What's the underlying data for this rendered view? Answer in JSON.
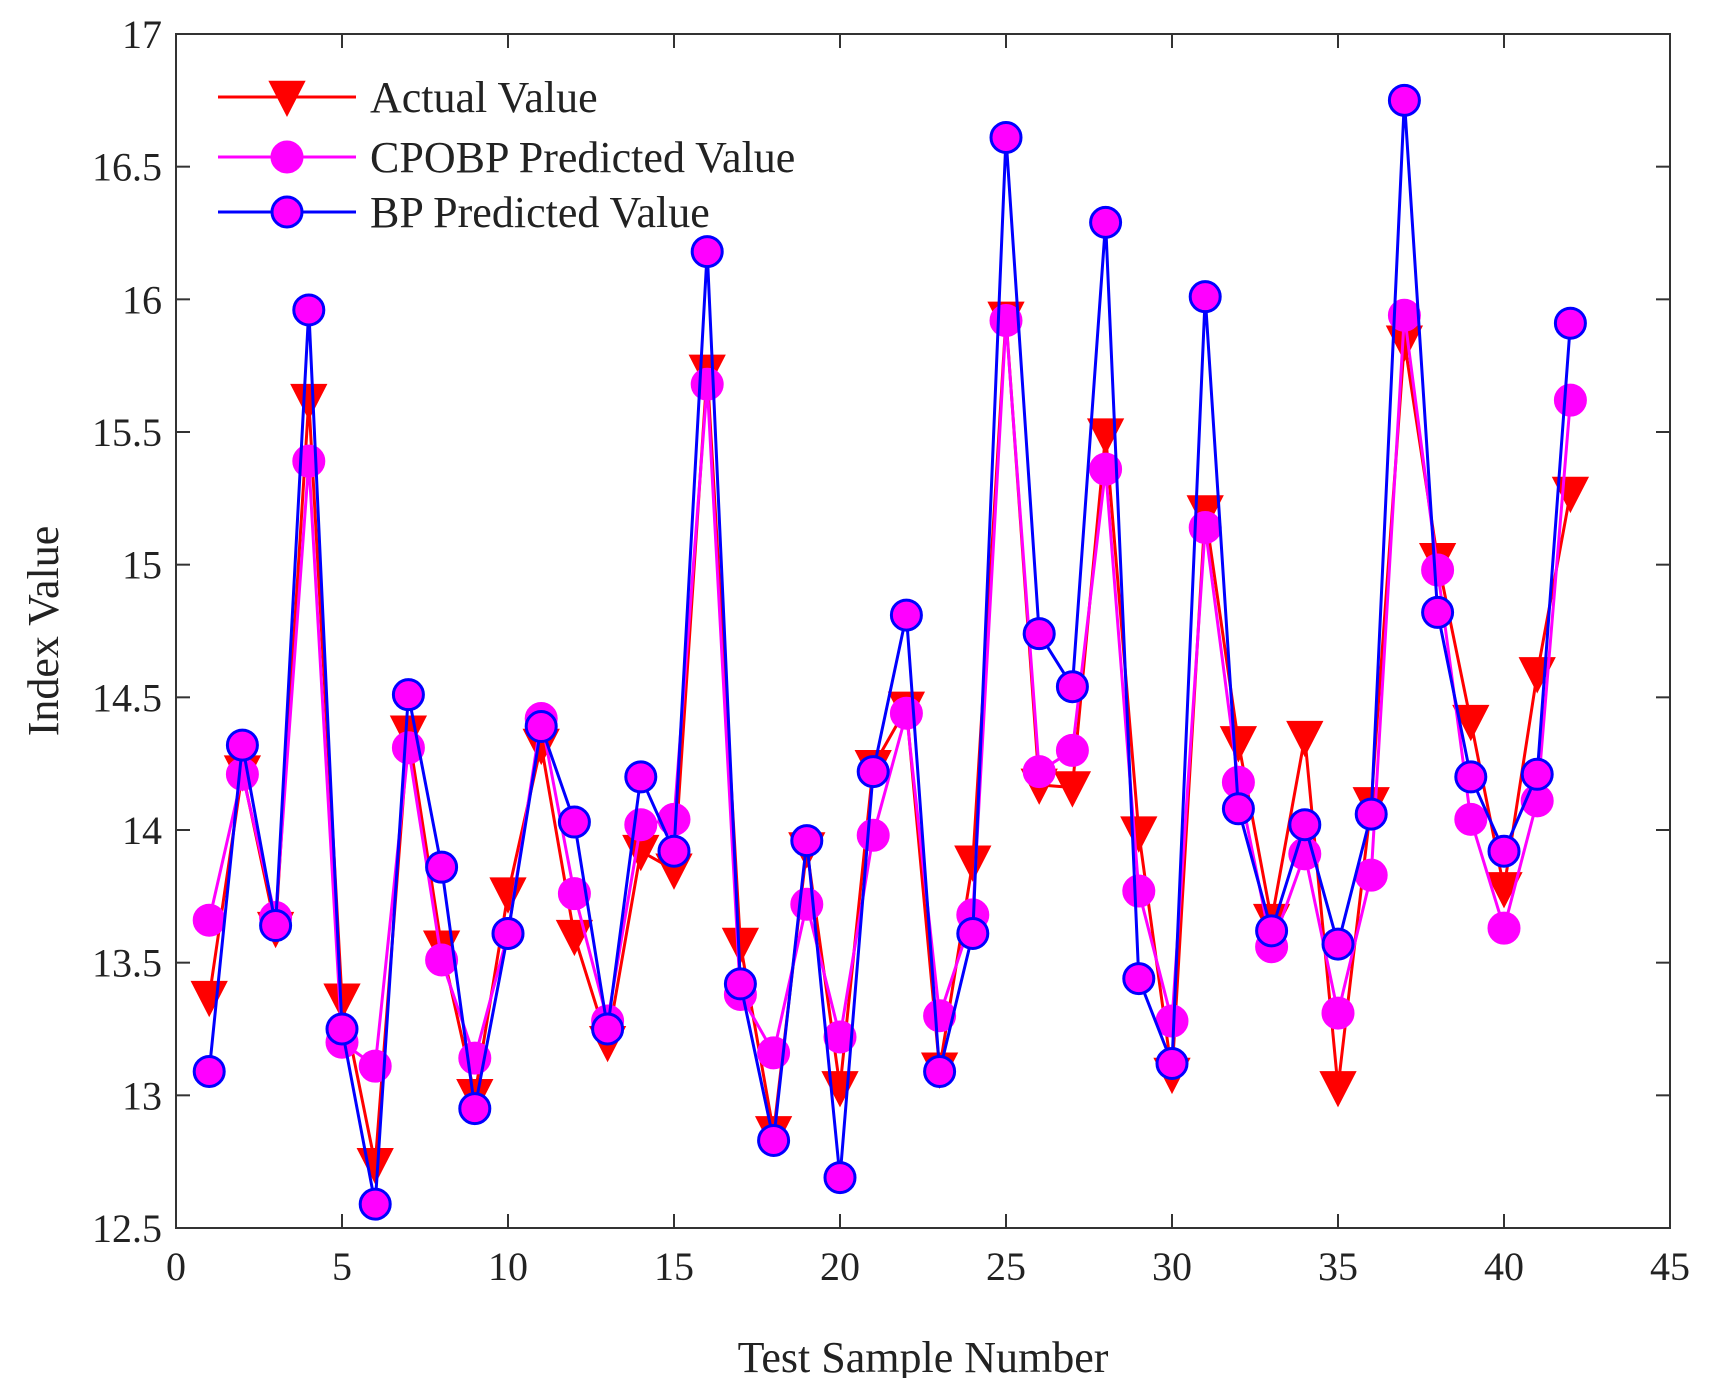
{
  "chart_data": {
    "type": "line",
    "title": "",
    "xlabel": "Test Sample Number",
    "ylabel": "Index Value",
    "xlim": [
      0,
      45
    ],
    "ylim": [
      12.5,
      17
    ],
    "xticks": [
      0,
      5,
      10,
      15,
      20,
      25,
      30,
      35,
      40,
      45
    ],
    "yticks": [
      12.5,
      13,
      13.5,
      14,
      14.5,
      15,
      15.5,
      16,
      16.5,
      17
    ],
    "grid": false,
    "legend_position": "top-left",
    "x": [
      1,
      2,
      3,
      4,
      5,
      6,
      7,
      8,
      9,
      10,
      11,
      12,
      13,
      14,
      15,
      16,
      17,
      18,
      19,
      20,
      21,
      22,
      23,
      24,
      25,
      26,
      27,
      28,
      29,
      30,
      31,
      32,
      33,
      34,
      35,
      36,
      37,
      38,
      39,
      40,
      41,
      42
    ],
    "series": [
      {
        "name": "Actual Value",
        "color": "#ff0000",
        "marker": "triangle-down",
        "marker_fill": "#ff0000",
        "values": [
          13.37,
          14.22,
          13.63,
          15.62,
          13.36,
          12.74,
          14.37,
          13.56,
          13.0,
          13.76,
          14.32,
          13.6,
          13.2,
          13.92,
          13.85,
          15.73,
          13.57,
          12.86,
          13.93,
          13.03,
          14.24,
          14.46,
          13.1,
          13.88,
          15.93,
          14.17,
          14.16,
          15.49,
          13.99,
          13.08,
          15.2,
          14.33,
          13.66,
          14.35,
          13.03,
          14.1,
          15.84,
          15.02,
          14.41,
          13.78,
          14.59,
          15.27
        ]
      },
      {
        "name": "CPOBP Predicted Value",
        "color": "#ff00ff",
        "marker": "circle",
        "marker_fill": "#ff00ff",
        "values": [
          13.66,
          14.21,
          13.67,
          15.39,
          13.2,
          13.11,
          14.31,
          13.51,
          13.14,
          13.61,
          14.42,
          13.76,
          13.28,
          14.02,
          14.04,
          15.68,
          13.38,
          13.16,
          13.72,
          13.22,
          13.98,
          14.44,
          13.3,
          13.68,
          15.92,
          14.22,
          14.3,
          15.36,
          13.77,
          13.28,
          15.14,
          14.18,
          13.56,
          13.91,
          13.31,
          13.83,
          15.94,
          14.98,
          14.04,
          13.63,
          14.11,
          15.62
        ]
      },
      {
        "name": "BP Predicted Value",
        "color": "#0000ff",
        "marker": "circle",
        "marker_fill": "#ff00ff",
        "values": [
          13.09,
          14.32,
          13.64,
          15.96,
          13.25,
          12.59,
          14.51,
          13.86,
          12.95,
          13.61,
          14.39,
          14.03,
          13.25,
          14.2,
          13.92,
          16.18,
          13.42,
          12.83,
          13.96,
          12.69,
          14.22,
          14.81,
          13.09,
          13.61,
          16.61,
          14.74,
          14.54,
          16.29,
          13.44,
          13.12,
          16.01,
          14.08,
          13.62,
          14.02,
          13.57,
          14.06,
          16.75,
          14.82,
          14.2,
          13.92,
          14.21,
          15.91
        ]
      }
    ]
  }
}
